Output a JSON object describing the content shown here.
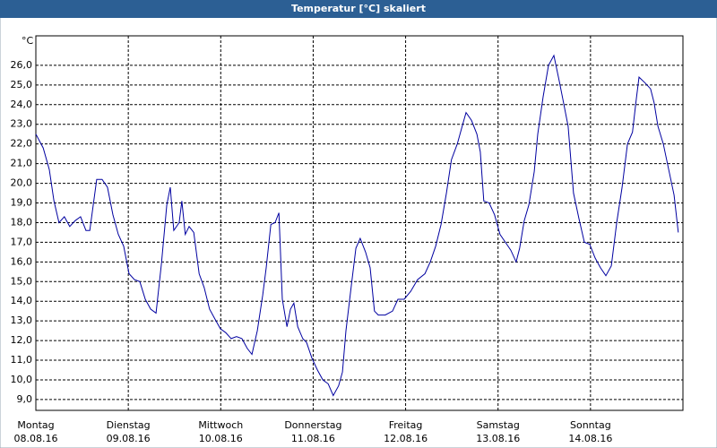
{
  "chart_data": {
    "type": "line",
    "title": "Temperatur [°C] skaliert",
    "unit_label": "°C",
    "xlim": [
      0,
      168
    ],
    "xticks": [
      {
        "value": 0,
        "label": "Montag"
      },
      {
        "value": 24,
        "label": "Dienstag"
      },
      {
        "value": 48,
        "label": "Mittwoch"
      },
      {
        "value": 72,
        "label": "Donnerstag"
      },
      {
        "value": 96,
        "label": "Freitag"
      },
      {
        "value": 120,
        "label": "Samstag"
      },
      {
        "value": 144,
        "label": "Sonntag"
      }
    ],
    "xtick_dates": [
      "08.08.16",
      "09.08.16",
      "10.08.16",
      "11.08.16",
      "12.08.16",
      "13.08.16",
      "14.08.16"
    ],
    "ylim": [
      8.45,
      27.5
    ],
    "yticks": [
      {
        "value": 9,
        "label": "9,0"
      },
      {
        "value": 10,
        "label": "10,0"
      },
      {
        "value": 11,
        "label": "11,0"
      },
      {
        "value": 12,
        "label": "12,0"
      },
      {
        "value": 13,
        "label": "13,0"
      },
      {
        "value": 14,
        "label": "14,0"
      },
      {
        "value": 15,
        "label": "15,0"
      },
      {
        "value": 16,
        "label": "16,0"
      },
      {
        "value": 17,
        "label": "17,0"
      },
      {
        "value": 18,
        "label": "18,0"
      },
      {
        "value": 19,
        "label": "19,0"
      },
      {
        "value": 20,
        "label": "20,0"
      },
      {
        "value": 21,
        "label": "21,0"
      },
      {
        "value": 22,
        "label": "22,0"
      },
      {
        "value": 23,
        "label": "23,0"
      },
      {
        "value": 24,
        "label": "24,0"
      },
      {
        "value": 25,
        "label": "25,0"
      },
      {
        "value": 26,
        "label": "26,0"
      }
    ],
    "grid": true,
    "x": [
      0,
      1.9,
      3.5,
      4.7,
      6.0,
      7.4,
      8.8,
      10.2,
      11.6,
      13.0,
      14.0,
      15.8,
      17.2,
      18.6,
      20.0,
      21.4,
      22.8,
      24.2,
      25.6,
      27.0,
      28.4,
      29.8,
      31.2,
      32.6,
      34.0,
      34.9,
      35.8,
      37.2,
      37.9,
      38.8,
      39.8,
      41.0,
      42.4,
      43.7,
      45.1,
      46.5,
      47.9,
      49.3,
      50.7,
      52.1,
      53.5,
      54.9,
      56.1,
      57.5,
      58.9,
      59.8,
      61.0,
      62.1,
      63.1,
      64.0,
      65.2,
      66.1,
      67.0,
      68.0,
      69.3,
      70.3,
      71.7,
      73.1,
      74.5,
      75.9,
      77.2,
      78.6,
      79.6,
      80.5,
      81.9,
      83.1,
      84.2,
      85.6,
      86.8,
      87.9,
      88.9,
      90.7,
      92.6,
      94.0,
      95.6,
      97.3,
      99.1,
      101.0,
      102.4,
      103.8,
      105.2,
      106.6,
      107.9,
      109.4,
      110.7,
      111.7,
      113.1,
      114.5,
      115.4,
      116.3,
      117.7,
      119.1,
      120.5,
      121.9,
      123.3,
      124.7,
      125.6,
      126.8,
      128.0,
      129.4,
      130.3,
      131.7,
      133.1,
      134.5,
      135.9,
      136.8,
      138.2,
      139.6,
      141.0,
      142.4,
      143.8,
      145.2,
      146.6,
      148.0,
      149.4,
      150.8,
      152.2,
      153.6,
      154.9,
      155.9,
      156.6,
      158.2,
      159.6,
      160.5,
      161.5,
      162.9,
      164.3,
      165.7,
      166.8
    ],
    "series": [
      {
        "name": "Temperatur",
        "color": "#0000a0",
        "values": [
          22.5,
          21.8,
          20.7,
          19.1,
          18.0,
          18.3,
          17.8,
          18.1,
          18.3,
          17.6,
          17.6,
          20.2,
          20.2,
          19.8,
          18.4,
          17.4,
          16.8,
          15.4,
          15.1,
          15.0,
          14.1,
          13.6,
          13.4,
          15.9,
          18.9,
          19.8,
          17.6,
          18.0,
          19.1,
          17.4,
          17.8,
          17.5,
          15.4,
          14.7,
          13.6,
          13.1,
          12.6,
          12.4,
          12.1,
          12.2,
          12.1,
          11.6,
          11.3,
          12.5,
          14.3,
          15.7,
          17.9,
          18.0,
          18.5,
          14.1,
          12.7,
          13.6,
          13.9,
          12.7,
          12.1,
          11.9,
          11.1,
          10.5,
          10.0,
          9.8,
          9.2,
          9.7,
          10.4,
          12.5,
          14.8,
          16.7,
          17.2,
          16.5,
          15.7,
          13.5,
          13.3,
          13.3,
          13.5,
          14.1,
          14.1,
          14.5,
          15.1,
          15.4,
          16.0,
          16.8,
          17.9,
          19.5,
          21.2,
          22.0,
          22.9,
          23.6,
          23.2,
          22.5,
          21.6,
          19.1,
          19.0,
          18.4,
          17.4,
          17.0,
          16.6,
          16.0,
          16.7,
          18.1,
          18.9,
          20.6,
          22.5,
          24.4,
          26.0,
          26.5,
          25.2,
          24.3,
          22.9,
          19.5,
          18.2,
          17.0,
          16.9,
          16.2,
          15.7,
          15.3,
          15.8,
          18.0,
          19.8,
          22.0,
          22.6,
          24.3,
          25.4,
          25.1,
          24.8,
          24.1,
          22.9,
          22.0,
          20.7,
          19.4,
          17.5
        ]
      }
    ]
  }
}
